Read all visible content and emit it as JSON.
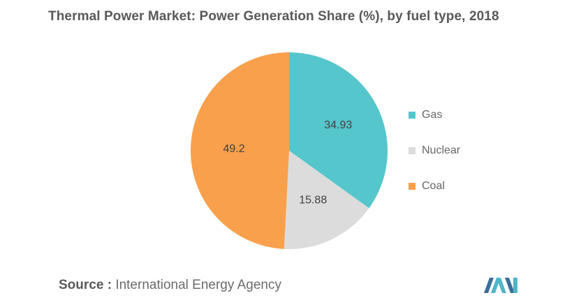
{
  "title": "Thermal Power Market: Power Generation Share (%), by fuel type, 2018",
  "source": {
    "prefix": "Source :",
    "text": "International Energy Agency"
  },
  "colors": {
    "gas": "#55c6cc",
    "nuclear": "#dcdcdc",
    "coal": "#f9a04c",
    "logo": "#3b6f9a"
  },
  "chart_data": {
    "type": "pie",
    "title": "Thermal Power Market: Power Generation Share (%), by fuel type, 2018",
    "legend_position": "right",
    "slices": [
      {
        "label": "Gas",
        "value": 34.93,
        "value_label": "34.93",
        "color": "#55c6cc"
      },
      {
        "label": "Nuclear",
        "value": 15.88,
        "value_label": "15.88",
        "color": "#dcdcdc"
      },
      {
        "label": "Coal",
        "value": 49.2,
        "value_label": "49.2",
        "color": "#f9a04c"
      }
    ]
  },
  "logo": {
    "icon": "mordor-intelligence-logo-icon"
  }
}
